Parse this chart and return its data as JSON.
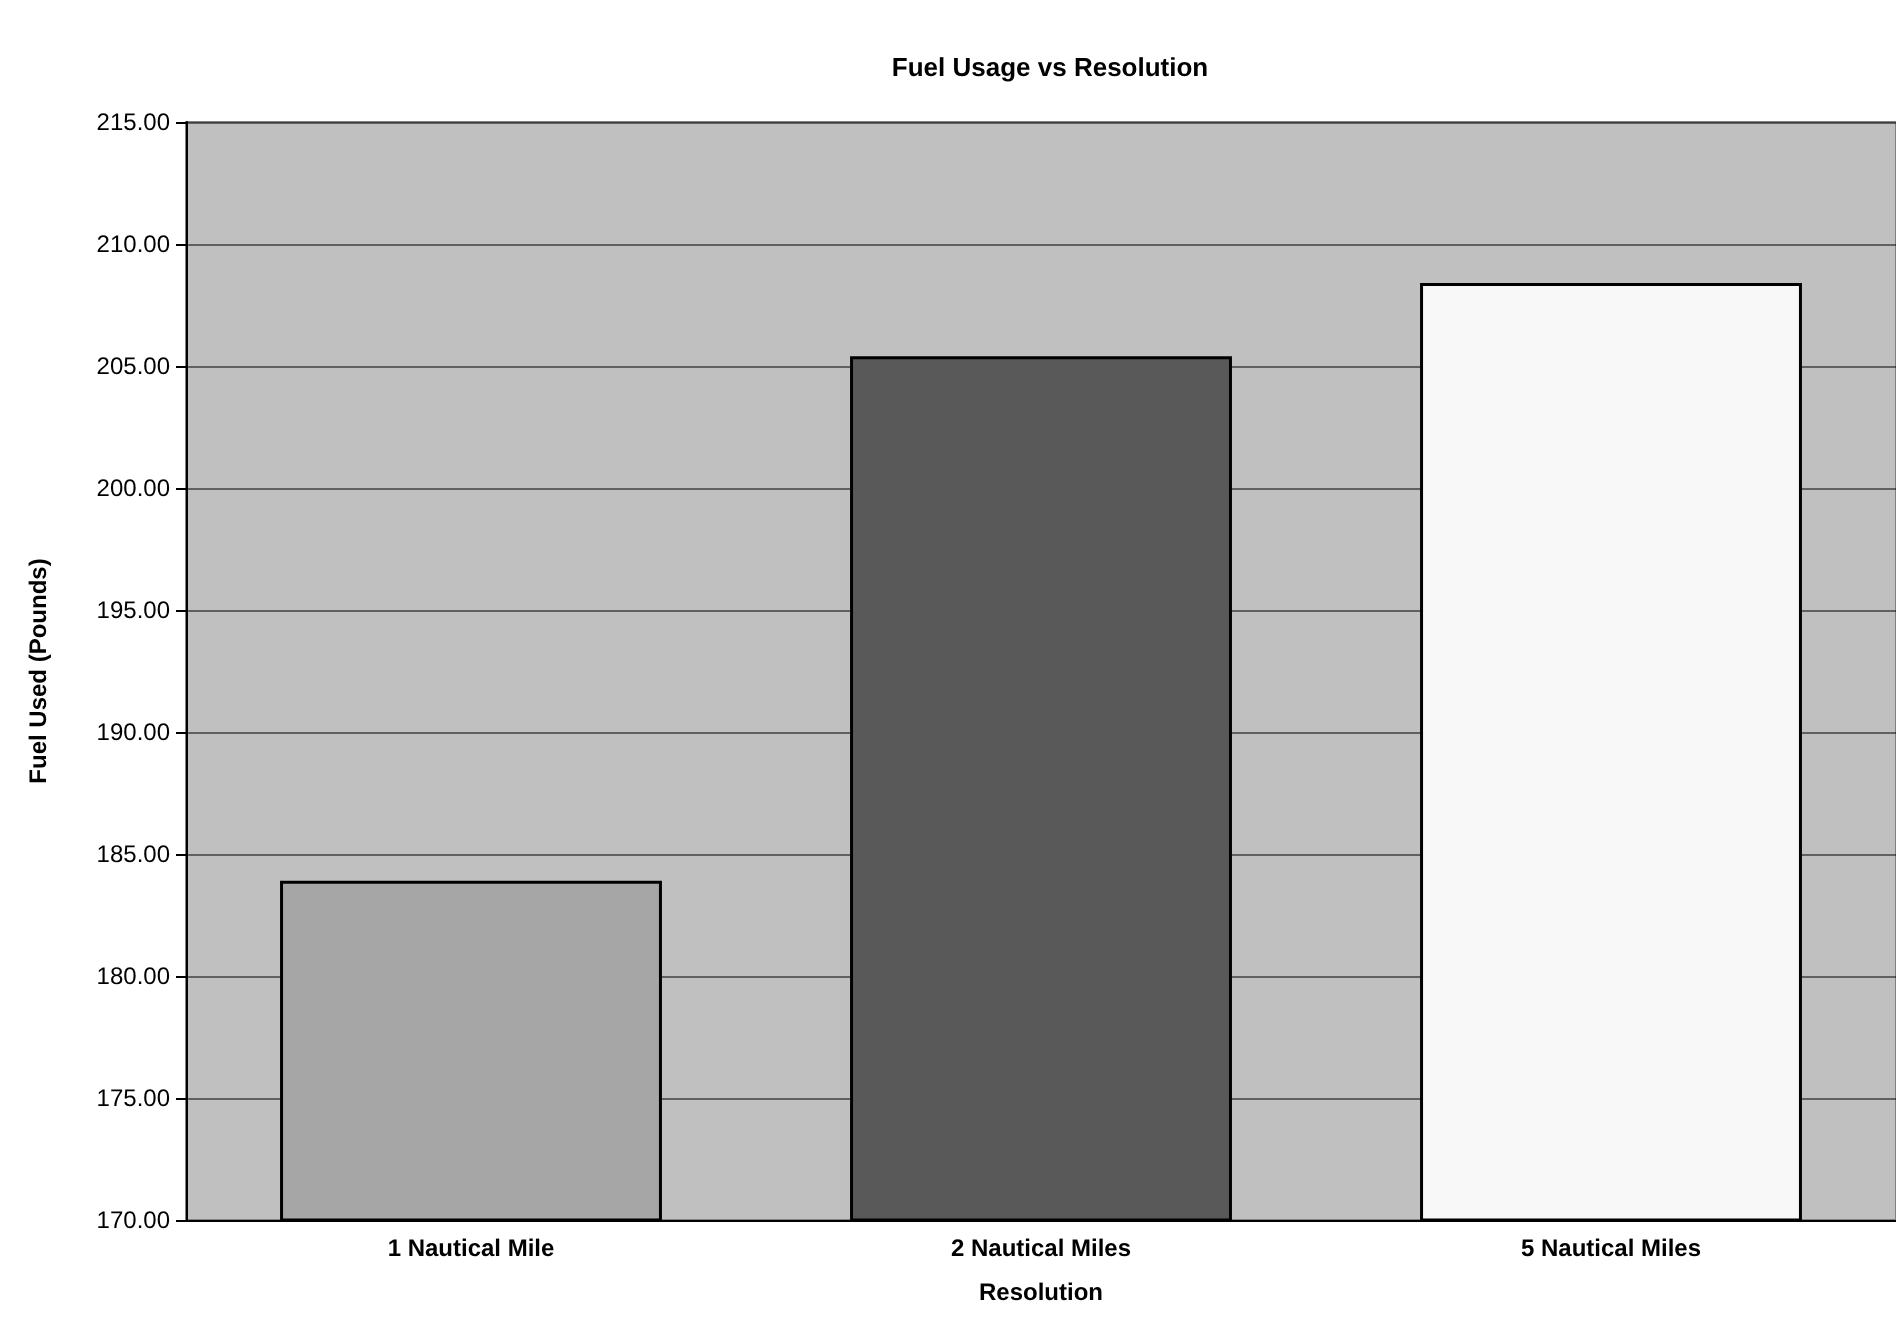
{
  "chart_data": {
    "type": "bar",
    "title": "Fuel Usage vs Resolution",
    "xlabel": "Resolution",
    "ylabel": "Fuel Used (Pounds)",
    "categories": [
      "1 Nautical Mile",
      "2 Nautical Miles",
      "5 Nautical Miles"
    ],
    "values": [
      183.9,
      205.4,
      208.4
    ],
    "colors": [
      "#a6a6a6",
      "#595959",
      "#f8f8f8"
    ],
    "ylim": [
      170,
      215
    ],
    "yticks": [
      {
        "value": 170,
        "label": "170.00"
      },
      {
        "value": 175,
        "label": "175.00"
      },
      {
        "value": 180,
        "label": "180.00"
      },
      {
        "value": 185,
        "label": "185.00"
      },
      {
        "value": 190,
        "label": "190.00"
      },
      {
        "value": 195,
        "label": "195.00"
      },
      {
        "value": 200,
        "label": "200.00"
      },
      {
        "value": 205,
        "label": "205.00"
      },
      {
        "value": 210,
        "label": "210.00"
      },
      {
        "value": 215,
        "label": "215.00"
      }
    ],
    "grid": "y"
  }
}
